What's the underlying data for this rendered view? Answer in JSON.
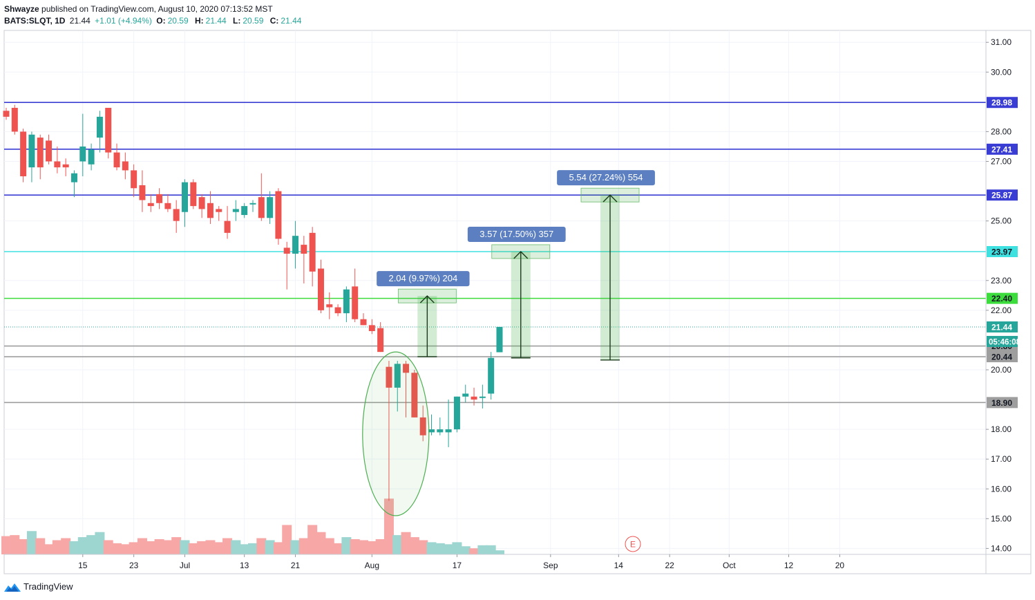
{
  "header": {
    "author": "Shwayze",
    "published": "published on TradingView.com, August 10, 2020 07:13:52 MST",
    "symbol": "BATS:SLQT, 1D",
    "last": "21.44",
    "change": "+1.01 (+4.94%)",
    "o_label": "O:",
    "o_value": "20.59",
    "h_label": "H:",
    "h_value": "21.44",
    "l_label": "L:",
    "l_value": "20.59",
    "c_label": "C:",
    "c_value": "21.44"
  },
  "footer": {
    "brand": "TradingView"
  },
  "colors": {
    "up": "#26a69a",
    "down": "#ef5350",
    "vol_up": "#9dd6d1",
    "vol_down": "#f7a8a6"
  },
  "chart_data": {
    "type": "candlestick",
    "symbol": "BATS:SLQT",
    "interval": "1D",
    "ylim": [
      13.8,
      31.4
    ],
    "y_ticks": [
      "14.00",
      "15.00",
      "16.00",
      "17.00",
      "18.00",
      "20.00",
      "22.00",
      "23.00",
      "25.00",
      "27.00",
      "28.00",
      "30.00",
      "31.00"
    ],
    "x_ticks": [
      {
        "index": 9,
        "label": "15"
      },
      {
        "index": 15,
        "label": "23"
      },
      {
        "index": 21,
        "label": "Jul"
      },
      {
        "index": 28,
        "label": "13"
      },
      {
        "index": 34,
        "label": "21"
      },
      {
        "index": 43,
        "label": "Aug"
      },
      {
        "index": 53,
        "label": "17"
      },
      {
        "index": 64,
        "label": "Sep"
      },
      {
        "index": 72,
        "label": "14"
      },
      {
        "index": 78,
        "label": "22"
      },
      {
        "index": 85,
        "label": "Oct"
      },
      {
        "index": 92,
        "label": "12"
      },
      {
        "index": 98,
        "label": "20"
      }
    ],
    "candles": [
      [
        28.7,
        28.8,
        28.4,
        28.5,
        1.8
      ],
      [
        28.8,
        28.9,
        27.9,
        28.0,
        1.9
      ],
      [
        28.0,
        28.1,
        26.3,
        26.5,
        1.5
      ],
      [
        26.8,
        28.0,
        26.3,
        27.9,
        2.3
      ],
      [
        27.8,
        27.9,
        26.4,
        26.8,
        1.6
      ],
      [
        27.7,
        27.9,
        26.9,
        27.0,
        1.0
      ],
      [
        27.0,
        27.5,
        26.6,
        26.8,
        1.4
      ],
      [
        26.9,
        27.1,
        26.5,
        26.8,
        1.6
      ],
      [
        26.3,
        26.7,
        25.8,
        26.6,
        1.3
      ],
      [
        27.0,
        28.6,
        26.5,
        27.5,
        1.7
      ],
      [
        26.9,
        27.6,
        26.7,
        27.4,
        1.9
      ],
      [
        27.8,
        28.7,
        27.3,
        28.5,
        2.2
      ],
      [
        28.8,
        28.8,
        27.1,
        27.3,
        1.4
      ],
      [
        27.3,
        27.6,
        26.7,
        26.8,
        1.1
      ],
      [
        27.0,
        27.3,
        26.4,
        26.7,
        1.0
      ],
      [
        26.7,
        26.9,
        25.8,
        26.1,
        1.2
      ],
      [
        26.2,
        26.7,
        25.3,
        25.7,
        1.6
      ],
      [
        25.6,
        25.9,
        25.3,
        25.5,
        1.3
      ],
      [
        25.9,
        26.1,
        25.4,
        25.6,
        1.5
      ],
      [
        25.6,
        25.9,
        25.3,
        25.4,
        1.4
      ],
      [
        25.4,
        25.7,
        24.6,
        25.0,
        1.7
      ],
      [
        25.3,
        26.4,
        24.8,
        26.3,
        1.4
      ],
      [
        26.3,
        26.4,
        25.4,
        25.5,
        1.1
      ],
      [
        25.8,
        25.9,
        25.1,
        25.4,
        1.3
      ],
      [
        25.6,
        26.0,
        24.9,
        25.1,
        1.4
      ],
      [
        25.4,
        25.5,
        25.0,
        25.3,
        1.2
      ],
      [
        25.0,
        25.5,
        24.4,
        24.6,
        1.6
      ],
      [
        25.3,
        25.7,
        25.0,
        25.4,
        1.4
      ],
      [
        25.2,
        25.6,
        25.1,
        25.5,
        1.0
      ],
      [
        25.6,
        25.7,
        25.3,
        25.6,
        1.1
      ],
      [
        25.8,
        26.6,
        25.0,
        25.1,
        1.6
      ],
      [
        25.1,
        26.0,
        24.9,
        25.8,
        1.4
      ],
      [
        26.0,
        26.1,
        24.2,
        24.4,
        1.2
      ],
      [
        24.1,
        24.3,
        22.7,
        23.9,
        2.9
      ],
      [
        23.9,
        25.0,
        23.4,
        24.5,
        1.4
      ],
      [
        24.2,
        24.5,
        22.9,
        23.9,
        1.6
      ],
      [
        24.6,
        24.8,
        22.8,
        23.3,
        2.9
      ],
      [
        23.4,
        23.7,
        21.9,
        22.0,
        2.2
      ],
      [
        22.2,
        22.6,
        21.7,
        22.1,
        1.6
      ],
      [
        22.1,
        22.2,
        21.8,
        21.9,
        1.1
      ],
      [
        21.9,
        22.8,
        21.6,
        22.7,
        1.7
      ],
      [
        22.8,
        23.4,
        21.6,
        21.7,
        1.5
      ],
      [
        21.7,
        21.9,
        21.5,
        21.5,
        1.4
      ],
      [
        21.5,
        21.7,
        21.2,
        21.3,
        1.3
      ],
      [
        21.4,
        21.6,
        20.6,
        20.6,
        1.5
      ],
      [
        20.1,
        20.3,
        15.6,
        19.4,
        5.5
      ],
      [
        19.4,
        20.3,
        18.6,
        20.2,
        1.9
      ],
      [
        20.2,
        20.3,
        18.4,
        19.9,
        2.2
      ],
      [
        19.9,
        20.0,
        18.4,
        18.4,
        1.7
      ],
      [
        18.4,
        18.8,
        17.6,
        17.8,
        1.4
      ],
      [
        17.9,
        18.5,
        17.8,
        18.0,
        1.2
      ],
      [
        17.9,
        18.4,
        17.8,
        18.0,
        1.1
      ],
      [
        17.9,
        19.0,
        17.4,
        18.0,
        1.0
      ],
      [
        18.0,
        19.1,
        17.9,
        19.1,
        1.2
      ],
      [
        19.1,
        19.5,
        18.9,
        19.2,
        0.8
      ],
      [
        19.1,
        19.4,
        18.8,
        19.0,
        0.6
      ],
      [
        19.1,
        19.5,
        18.7,
        19.1,
        0.9
      ],
      [
        19.2,
        20.6,
        19.0,
        20.4,
        0.9
      ],
      [
        20.59,
        21.44,
        20.59,
        21.44,
        0.4
      ]
    ],
    "horizontal_levels": [
      {
        "value": 28.98,
        "label": "28.98",
        "color": "#3a3dd4"
      },
      {
        "value": 27.41,
        "label": "27.41",
        "color": "#3a3dd4"
      },
      {
        "value": 25.87,
        "label": "25.87",
        "color": "#3a3dd4"
      },
      {
        "value": 23.97,
        "label": "23.97",
        "color": "#3fe0e0"
      },
      {
        "value": 22.4,
        "label": "22.40",
        "color": "#3ddc3d"
      },
      {
        "value": 21.44,
        "label": "21.44",
        "color": "#26a69a",
        "dotted": true
      },
      {
        "value": 20.8,
        "label": "20.80",
        "color": "#9e9e9e"
      },
      {
        "value": 20.44,
        "label": "20.44",
        "color": "#9e9e9e"
      },
      {
        "value": 18.9,
        "label": "18.90",
        "color": "#9e9e9e"
      }
    ],
    "countdown": "05:46:08",
    "measures": [
      {
        "x_index": 49.5,
        "from": 20.44,
        "to": 22.48,
        "label": "2.04 (9.97%) 204"
      },
      {
        "x_index": 60.5,
        "from": 20.4,
        "to": 23.97,
        "label": "3.57 (17.50%) 357"
      },
      {
        "x_index": 71.0,
        "from": 20.33,
        "to": 25.87,
        "label": "5.54 (27.24%) 554"
      }
    ],
    "ellipse": {
      "x_index": 45.8,
      "y_center": 17.85,
      "x_halfwidth": 3.9,
      "y_half": 2.75
    },
    "event_marker": "E"
  }
}
